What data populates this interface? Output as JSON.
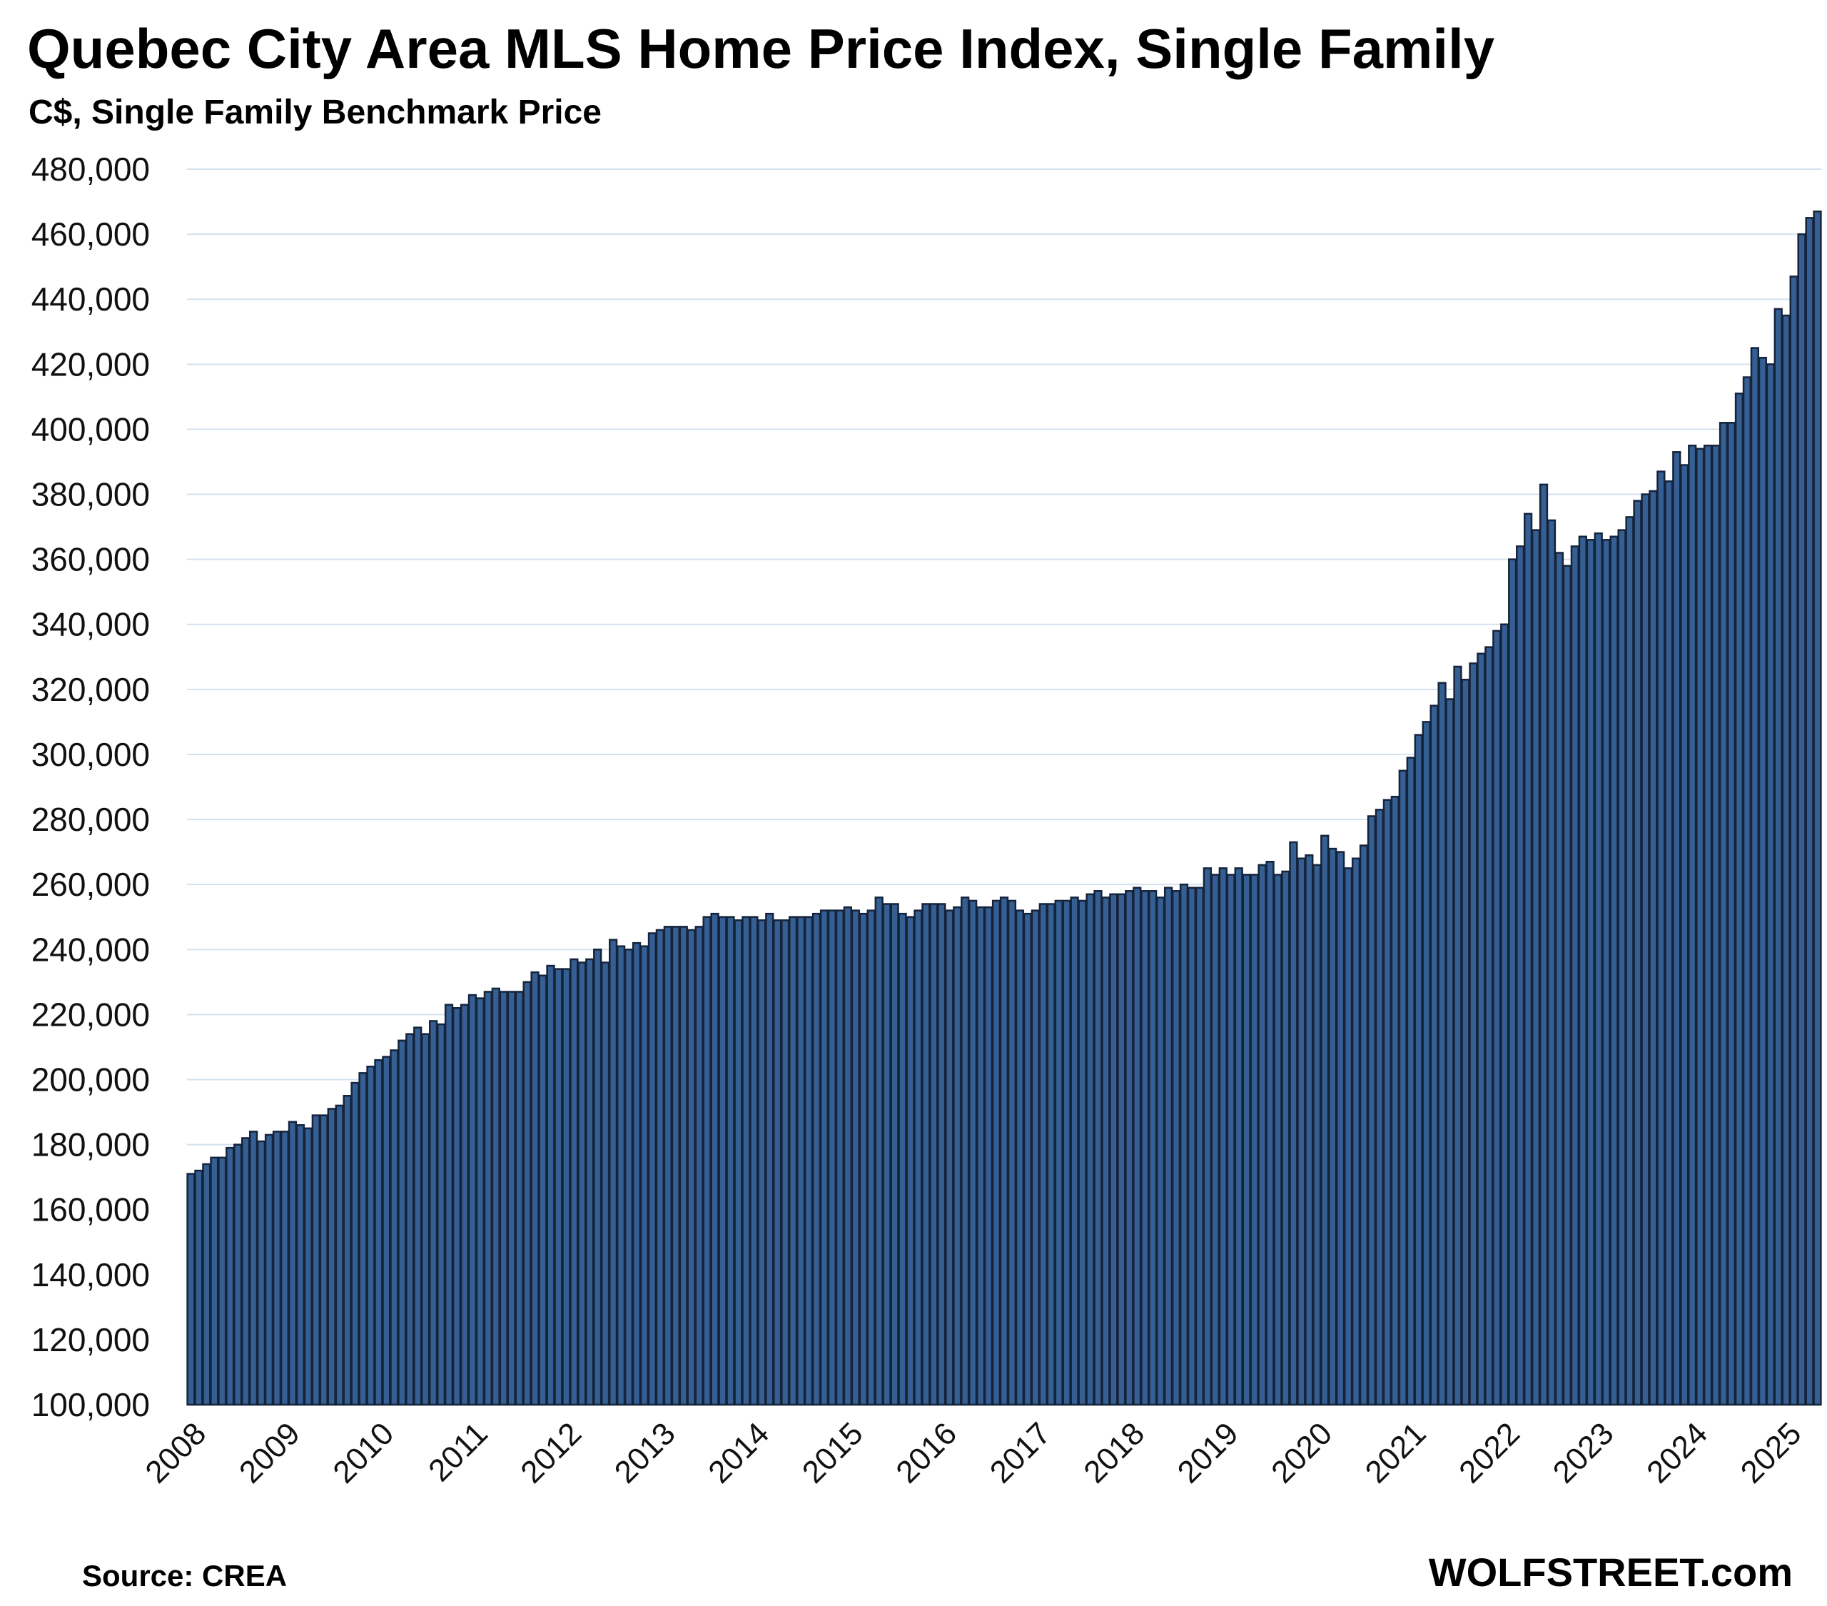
{
  "chart_data": {
    "type": "bar",
    "title": "Quebec City Area MLS Home Price Index, Single Family",
    "subtitle": "C$, Single Family Benchmark Price",
    "xlabel": "",
    "ylabel": "",
    "ylim": [
      100000,
      480000
    ],
    "yticks": [
      100000,
      120000,
      140000,
      160000,
      180000,
      200000,
      220000,
      240000,
      260000,
      280000,
      300000,
      320000,
      340000,
      360000,
      380000,
      400000,
      420000,
      440000,
      460000,
      480000
    ],
    "ytick_labels": [
      "100,000",
      "120,000",
      "140,000",
      "160,000",
      "180,000",
      "200,000",
      "220,000",
      "240,000",
      "260,000",
      "280,000",
      "300,000",
      "320,000",
      "340,000",
      "360,000",
      "380,000",
      "400,000",
      "420,000",
      "440,000",
      "460,000",
      "480,000"
    ],
    "xtick_labels": [
      "2008",
      "2009",
      "2010",
      "2011",
      "2012",
      "2013",
      "2014",
      "2015",
      "2016",
      "2017",
      "2018",
      "2019",
      "2020",
      "2021",
      "2022",
      "2023",
      "2024",
      "2025"
    ],
    "frequency": "monthly",
    "start": "2008-01",
    "grid": true,
    "bar_color": "#355f93",
    "values": [
      171000,
      172000,
      174000,
      176000,
      176000,
      179000,
      180000,
      182000,
      184000,
      181000,
      183000,
      184000,
      184000,
      187000,
      186000,
      185000,
      189000,
      189000,
      191000,
      192000,
      195000,
      199000,
      202000,
      204000,
      206000,
      207000,
      209000,
      212000,
      214000,
      216000,
      214000,
      218000,
      217000,
      223000,
      222000,
      223000,
      226000,
      225000,
      227000,
      228000,
      227000,
      227000,
      227000,
      230000,
      233000,
      232000,
      235000,
      234000,
      234000,
      237000,
      236000,
      237000,
      240000,
      236000,
      243000,
      241000,
      240000,
      242000,
      241000,
      245000,
      246000,
      247000,
      247000,
      247000,
      246000,
      247000,
      250000,
      251000,
      250000,
      250000,
      249000,
      250000,
      250000,
      249000,
      251000,
      249000,
      249000,
      250000,
      250000,
      250000,
      251000,
      252000,
      252000,
      252000,
      253000,
      252000,
      251000,
      252000,
      256000,
      254000,
      254000,
      251000,
      250000,
      252000,
      254000,
      254000,
      254000,
      252000,
      253000,
      256000,
      255000,
      253000,
      253000,
      255000,
      256000,
      255000,
      252000,
      251000,
      252000,
      254000,
      254000,
      255000,
      255000,
      256000,
      255000,
      257000,
      258000,
      256000,
      257000,
      257000,
      258000,
      259000,
      258000,
      258000,
      256000,
      259000,
      258000,
      260000,
      259000,
      259000,
      265000,
      263000,
      265000,
      263000,
      265000,
      263000,
      263000,
      266000,
      267000,
      263000,
      264000,
      273000,
      268000,
      269000,
      266000,
      275000,
      271000,
      270000,
      265000,
      268000,
      272000,
      281000,
      283000,
      286000,
      287000,
      295000,
      299000,
      306000,
      310000,
      315000,
      322000,
      317000,
      327000,
      323000,
      328000,
      331000,
      333000,
      338000,
      340000,
      360000,
      364000,
      374000,
      369000,
      383000,
      372000,
      362000,
      358000,
      364000,
      367000,
      366000,
      368000,
      366000,
      367000,
      369000,
      373000,
      378000,
      380000,
      381000,
      387000,
      384000,
      393000,
      389000,
      395000,
      394000,
      395000,
      395000,
      402000,
      402000,
      411000,
      416000,
      425000,
      422000,
      420000,
      437000,
      435000,
      447000,
      460000,
      465000,
      467000
    ]
  },
  "footer": {
    "source": "Source: CREA",
    "brand": "WOLFSTREET.com"
  }
}
